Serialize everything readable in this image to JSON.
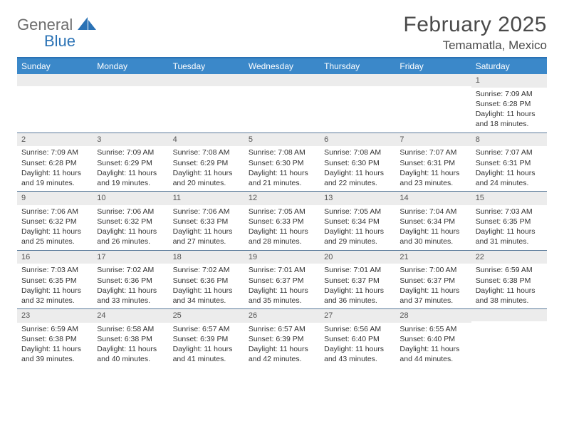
{
  "logo": {
    "word1": "General",
    "word2": "Blue"
  },
  "title": "February 2025",
  "location": "Temamatla, Mexico",
  "colors": {
    "header_bg": "#3b88c9",
    "header_border": "#2a72b5",
    "daynum_bg": "#ececec",
    "cell_border": "#5a7a9a",
    "text": "#333333",
    "logo_gray": "#6d6d6d",
    "logo_blue": "#2a72b5"
  },
  "typography": {
    "title_fontsize_pt": 22,
    "location_fontsize_pt": 13,
    "dayheader_fontsize_pt": 9,
    "cell_fontsize_pt": 8,
    "font_family": "Arial"
  },
  "day_headers": [
    "Sunday",
    "Monday",
    "Tuesday",
    "Wednesday",
    "Thursday",
    "Friday",
    "Saturday"
  ],
  "weeks": [
    [
      {
        "n": "",
        "sr": "",
        "ss": "",
        "dl": ""
      },
      {
        "n": "",
        "sr": "",
        "ss": "",
        "dl": ""
      },
      {
        "n": "",
        "sr": "",
        "ss": "",
        "dl": ""
      },
      {
        "n": "",
        "sr": "",
        "ss": "",
        "dl": ""
      },
      {
        "n": "",
        "sr": "",
        "ss": "",
        "dl": ""
      },
      {
        "n": "",
        "sr": "",
        "ss": "",
        "dl": ""
      },
      {
        "n": "1",
        "sr": "Sunrise: 7:09 AM",
        "ss": "Sunset: 6:28 PM",
        "dl": "Daylight: 11 hours and 18 minutes."
      }
    ],
    [
      {
        "n": "2",
        "sr": "Sunrise: 7:09 AM",
        "ss": "Sunset: 6:28 PM",
        "dl": "Daylight: 11 hours and 19 minutes."
      },
      {
        "n": "3",
        "sr": "Sunrise: 7:09 AM",
        "ss": "Sunset: 6:29 PM",
        "dl": "Daylight: 11 hours and 19 minutes."
      },
      {
        "n": "4",
        "sr": "Sunrise: 7:08 AM",
        "ss": "Sunset: 6:29 PM",
        "dl": "Daylight: 11 hours and 20 minutes."
      },
      {
        "n": "5",
        "sr": "Sunrise: 7:08 AM",
        "ss": "Sunset: 6:30 PM",
        "dl": "Daylight: 11 hours and 21 minutes."
      },
      {
        "n": "6",
        "sr": "Sunrise: 7:08 AM",
        "ss": "Sunset: 6:30 PM",
        "dl": "Daylight: 11 hours and 22 minutes."
      },
      {
        "n": "7",
        "sr": "Sunrise: 7:07 AM",
        "ss": "Sunset: 6:31 PM",
        "dl": "Daylight: 11 hours and 23 minutes."
      },
      {
        "n": "8",
        "sr": "Sunrise: 7:07 AM",
        "ss": "Sunset: 6:31 PM",
        "dl": "Daylight: 11 hours and 24 minutes."
      }
    ],
    [
      {
        "n": "9",
        "sr": "Sunrise: 7:06 AM",
        "ss": "Sunset: 6:32 PM",
        "dl": "Daylight: 11 hours and 25 minutes."
      },
      {
        "n": "10",
        "sr": "Sunrise: 7:06 AM",
        "ss": "Sunset: 6:32 PM",
        "dl": "Daylight: 11 hours and 26 minutes."
      },
      {
        "n": "11",
        "sr": "Sunrise: 7:06 AM",
        "ss": "Sunset: 6:33 PM",
        "dl": "Daylight: 11 hours and 27 minutes."
      },
      {
        "n": "12",
        "sr": "Sunrise: 7:05 AM",
        "ss": "Sunset: 6:33 PM",
        "dl": "Daylight: 11 hours and 28 minutes."
      },
      {
        "n": "13",
        "sr": "Sunrise: 7:05 AM",
        "ss": "Sunset: 6:34 PM",
        "dl": "Daylight: 11 hours and 29 minutes."
      },
      {
        "n": "14",
        "sr": "Sunrise: 7:04 AM",
        "ss": "Sunset: 6:34 PM",
        "dl": "Daylight: 11 hours and 30 minutes."
      },
      {
        "n": "15",
        "sr": "Sunrise: 7:03 AM",
        "ss": "Sunset: 6:35 PM",
        "dl": "Daylight: 11 hours and 31 minutes."
      }
    ],
    [
      {
        "n": "16",
        "sr": "Sunrise: 7:03 AM",
        "ss": "Sunset: 6:35 PM",
        "dl": "Daylight: 11 hours and 32 minutes."
      },
      {
        "n": "17",
        "sr": "Sunrise: 7:02 AM",
        "ss": "Sunset: 6:36 PM",
        "dl": "Daylight: 11 hours and 33 minutes."
      },
      {
        "n": "18",
        "sr": "Sunrise: 7:02 AM",
        "ss": "Sunset: 6:36 PM",
        "dl": "Daylight: 11 hours and 34 minutes."
      },
      {
        "n": "19",
        "sr": "Sunrise: 7:01 AM",
        "ss": "Sunset: 6:37 PM",
        "dl": "Daylight: 11 hours and 35 minutes."
      },
      {
        "n": "20",
        "sr": "Sunrise: 7:01 AM",
        "ss": "Sunset: 6:37 PM",
        "dl": "Daylight: 11 hours and 36 minutes."
      },
      {
        "n": "21",
        "sr": "Sunrise: 7:00 AM",
        "ss": "Sunset: 6:37 PM",
        "dl": "Daylight: 11 hours and 37 minutes."
      },
      {
        "n": "22",
        "sr": "Sunrise: 6:59 AM",
        "ss": "Sunset: 6:38 PM",
        "dl": "Daylight: 11 hours and 38 minutes."
      }
    ],
    [
      {
        "n": "23",
        "sr": "Sunrise: 6:59 AM",
        "ss": "Sunset: 6:38 PM",
        "dl": "Daylight: 11 hours and 39 minutes."
      },
      {
        "n": "24",
        "sr": "Sunrise: 6:58 AM",
        "ss": "Sunset: 6:38 PM",
        "dl": "Daylight: 11 hours and 40 minutes."
      },
      {
        "n": "25",
        "sr": "Sunrise: 6:57 AM",
        "ss": "Sunset: 6:39 PM",
        "dl": "Daylight: 11 hours and 41 minutes."
      },
      {
        "n": "26",
        "sr": "Sunrise: 6:57 AM",
        "ss": "Sunset: 6:39 PM",
        "dl": "Daylight: 11 hours and 42 minutes."
      },
      {
        "n": "27",
        "sr": "Sunrise: 6:56 AM",
        "ss": "Sunset: 6:40 PM",
        "dl": "Daylight: 11 hours and 43 minutes."
      },
      {
        "n": "28",
        "sr": "Sunrise: 6:55 AM",
        "ss": "Sunset: 6:40 PM",
        "dl": "Daylight: 11 hours and 44 minutes."
      },
      {
        "n": "",
        "sr": "",
        "ss": "",
        "dl": ""
      }
    ]
  ]
}
